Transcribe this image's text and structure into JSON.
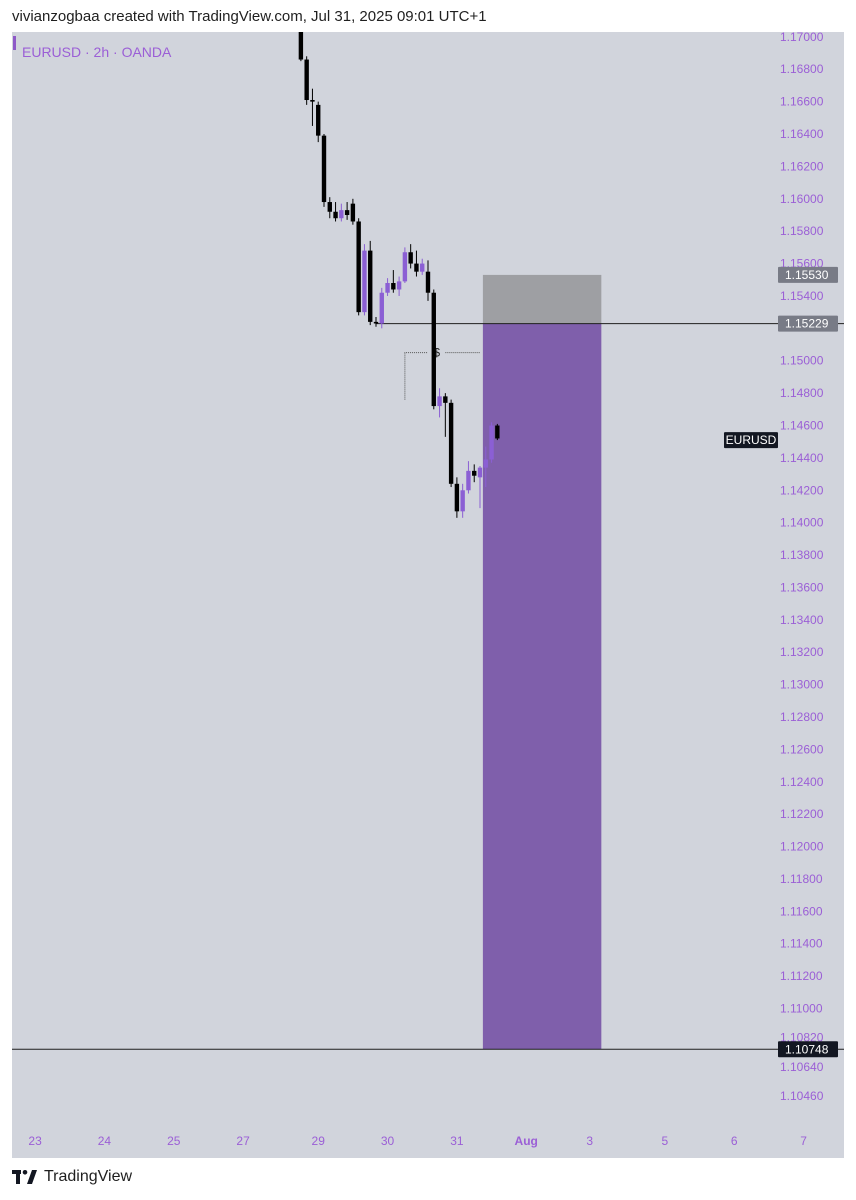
{
  "header": {
    "attribution": "vivianzogbaa created with TradingView.com, Jul 31, 2025 09:01 UTC+1"
  },
  "chart": {
    "symbol_label": "EURUSD · 2h · OANDA",
    "symbol_tag": "EURUSD",
    "dollar_marker": "$"
  },
  "footer": {
    "brand": "TradingView"
  },
  "colors": {
    "chart_bg": "#d1d4dc",
    "accent": "#9b5fd6",
    "target_zone": "#7f5fab",
    "stop_zone": "#9e9fa3",
    "bear_candle": "#000000",
    "bull_candle": "#8b5fd4"
  },
  "chart_data": {
    "type": "candlestick",
    "y_range": [
      1.1033,
      1.1703
    ],
    "y_ticks": [
      "1.17000",
      "1.16800",
      "1.16600",
      "1.16400",
      "1.16200",
      "1.16000",
      "1.15800",
      "1.15600",
      "1.15400",
      "1.15000",
      "1.14800",
      "1.14600",
      "1.14400",
      "1.14200",
      "1.14000",
      "1.13800",
      "1.13600",
      "1.13400",
      "1.13200",
      "1.13000",
      "1.12800",
      "1.12600",
      "1.12400",
      "1.12200",
      "1.12000",
      "1.11800",
      "1.11600",
      "1.11400",
      "1.11200",
      "1.11000",
      "1.10820",
      "1.10640",
      "1.10460"
    ],
    "x_ticks": [
      {
        "label": "23",
        "idx": -25,
        "bold": false
      },
      {
        "label": "24",
        "idx": -13,
        "bold": false
      },
      {
        "label": "25",
        "idx": -1,
        "bold": false
      },
      {
        "label": "27",
        "idx": 11,
        "bold": false
      },
      {
        "label": "29",
        "idx": 24,
        "bold": false
      },
      {
        "label": "30",
        "idx": 36,
        "bold": false
      },
      {
        "label": "31",
        "idx": 48,
        "bold": false
      },
      {
        "label": "Aug",
        "idx": 60,
        "bold": true
      },
      {
        "label": "3",
        "idx": 71,
        "bold": false
      },
      {
        "label": "5",
        "idx": 84,
        "bold": false
      },
      {
        "label": "6",
        "idx": 96,
        "bold": false
      },
      {
        "label": "7",
        "idx": 108,
        "bold": false
      }
    ],
    "x_index_range": [
      -29,
      115
    ],
    "price_labels": [
      {
        "text": "1.15530",
        "value": 1.1553,
        "style": "gray"
      },
      {
        "text": "1.15229",
        "value": 1.15229,
        "style": "gray"
      },
      {
        "text": "1.10748",
        "value": 1.10748,
        "style": "black"
      }
    ],
    "horizontal_lines": [
      1.15229,
      1.10748
    ],
    "position_tool": {
      "entry": 1.15229,
      "stop": 1.1553,
      "target": 1.10748,
      "start_idx": 52.5,
      "end_idx": 73
    },
    "marker": {
      "price": 1.1505,
      "idx_start": 37,
      "idx_end": 52
    },
    "symbol_tag_price": 1.1451,
    "candles": [
      {
        "o": 1.1716,
        "h": 1.172,
        "l": 1.1685,
        "c": 1.1686
      },
      {
        "o": 1.1686,
        "h": 1.1688,
        "l": 1.1658,
        "c": 1.1661
      },
      {
        "o": 1.1661,
        "h": 1.1668,
        "l": 1.1645,
        "c": 1.166
      },
      {
        "o": 1.1658,
        "h": 1.166,
        "l": 1.1635,
        "c": 1.1639
      },
      {
        "o": 1.1639,
        "h": 1.164,
        "l": 1.1595,
        "c": 1.1598
      },
      {
        "o": 1.1598,
        "h": 1.1601,
        "l": 1.1588,
        "c": 1.1592
      },
      {
        "o": 1.1592,
        "h": 1.1598,
        "l": 1.1586,
        "c": 1.1588
      },
      {
        "o": 1.1588,
        "h": 1.1597,
        "l": 1.1586,
        "c": 1.1593
      },
      {
        "o": 1.1593,
        "h": 1.1598,
        "l": 1.1587,
        "c": 1.159
      },
      {
        "o": 1.1597,
        "h": 1.16,
        "l": 1.1584,
        "c": 1.1586
      },
      {
        "o": 1.1586,
        "h": 1.1588,
        "l": 1.1528,
        "c": 1.153
      },
      {
        "o": 1.153,
        "h": 1.1572,
        "l": 1.1528,
        "c": 1.1568
      },
      {
        "o": 1.1568,
        "h": 1.1574,
        "l": 1.1522,
        "c": 1.1524
      },
      {
        "o": 1.1524,
        "h": 1.1527,
        "l": 1.1521,
        "c": 1.1523
      },
      {
        "o": 1.1523,
        "h": 1.1545,
        "l": 1.152,
        "c": 1.1542
      },
      {
        "o": 1.1542,
        "h": 1.1551,
        "l": 1.154,
        "c": 1.1548
      },
      {
        "o": 1.1548,
        "h": 1.1556,
        "l": 1.1542,
        "c": 1.1544
      },
      {
        "o": 1.1544,
        "h": 1.1552,
        "l": 1.154,
        "c": 1.1549
      },
      {
        "o": 1.1549,
        "h": 1.157,
        "l": 1.1548,
        "c": 1.1567
      },
      {
        "o": 1.1567,
        "h": 1.1572,
        "l": 1.1557,
        "c": 1.156
      },
      {
        "o": 1.156,
        "h": 1.1568,
        "l": 1.1552,
        "c": 1.1555
      },
      {
        "o": 1.1555,
        "h": 1.1563,
        "l": 1.1553,
        "c": 1.156
      },
      {
        "o": 1.1555,
        "h": 1.1562,
        "l": 1.1537,
        "c": 1.1542
      },
      {
        "o": 1.1542,
        "h": 1.1544,
        "l": 1.147,
        "c": 1.1472
      },
      {
        "o": 1.1472,
        "h": 1.1483,
        "l": 1.1465,
        "c": 1.1478
      },
      {
        "o": 1.1478,
        "h": 1.148,
        "l": 1.1453,
        "c": 1.1474
      },
      {
        "o": 1.1474,
        "h": 1.1476,
        "l": 1.1422,
        "c": 1.1424
      },
      {
        "o": 1.1424,
        "h": 1.1428,
        "l": 1.1403,
        "c": 1.1407
      },
      {
        "o": 1.1407,
        "h": 1.1424,
        "l": 1.1403,
        "c": 1.142
      },
      {
        "o": 1.142,
        "h": 1.1438,
        "l": 1.1418,
        "c": 1.1432
      },
      {
        "o": 1.1432,
        "h": 1.1436,
        "l": 1.1425,
        "c": 1.1429
      },
      {
        "o": 1.1428,
        "h": 1.1435,
        "l": 1.1409,
        "c": 1.1434
      },
      {
        "o": 1.1434,
        "h": 1.1447,
        "l": 1.1422,
        "c": 1.1439
      },
      {
        "o": 1.1439,
        "h": 1.1462,
        "l": 1.1437,
        "c": 1.146
      },
      {
        "o": 1.146,
        "h": 1.1461,
        "l": 1.1451,
        "c": 1.1452
      }
    ],
    "candle_start_idx": 21
  }
}
